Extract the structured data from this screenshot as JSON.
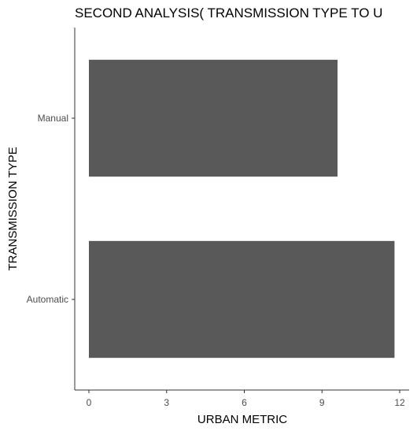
{
  "chart_data": {
    "type": "bar",
    "orientation": "horizontal",
    "title": "SECOND ANALYSIS( TRANSMISSION TYPE TO U",
    "xlabel": "URBAN METRIC",
    "ylabel": "TRANSMISSION TYPE",
    "categories": [
      "Automatic",
      "Manual"
    ],
    "values": [
      11.8,
      9.6
    ],
    "xlim": [
      0,
      12
    ],
    "xticks": [
      0,
      3,
      6,
      9,
      12
    ],
    "bar_color": "#595959",
    "grid": false,
    "legend": "none"
  }
}
